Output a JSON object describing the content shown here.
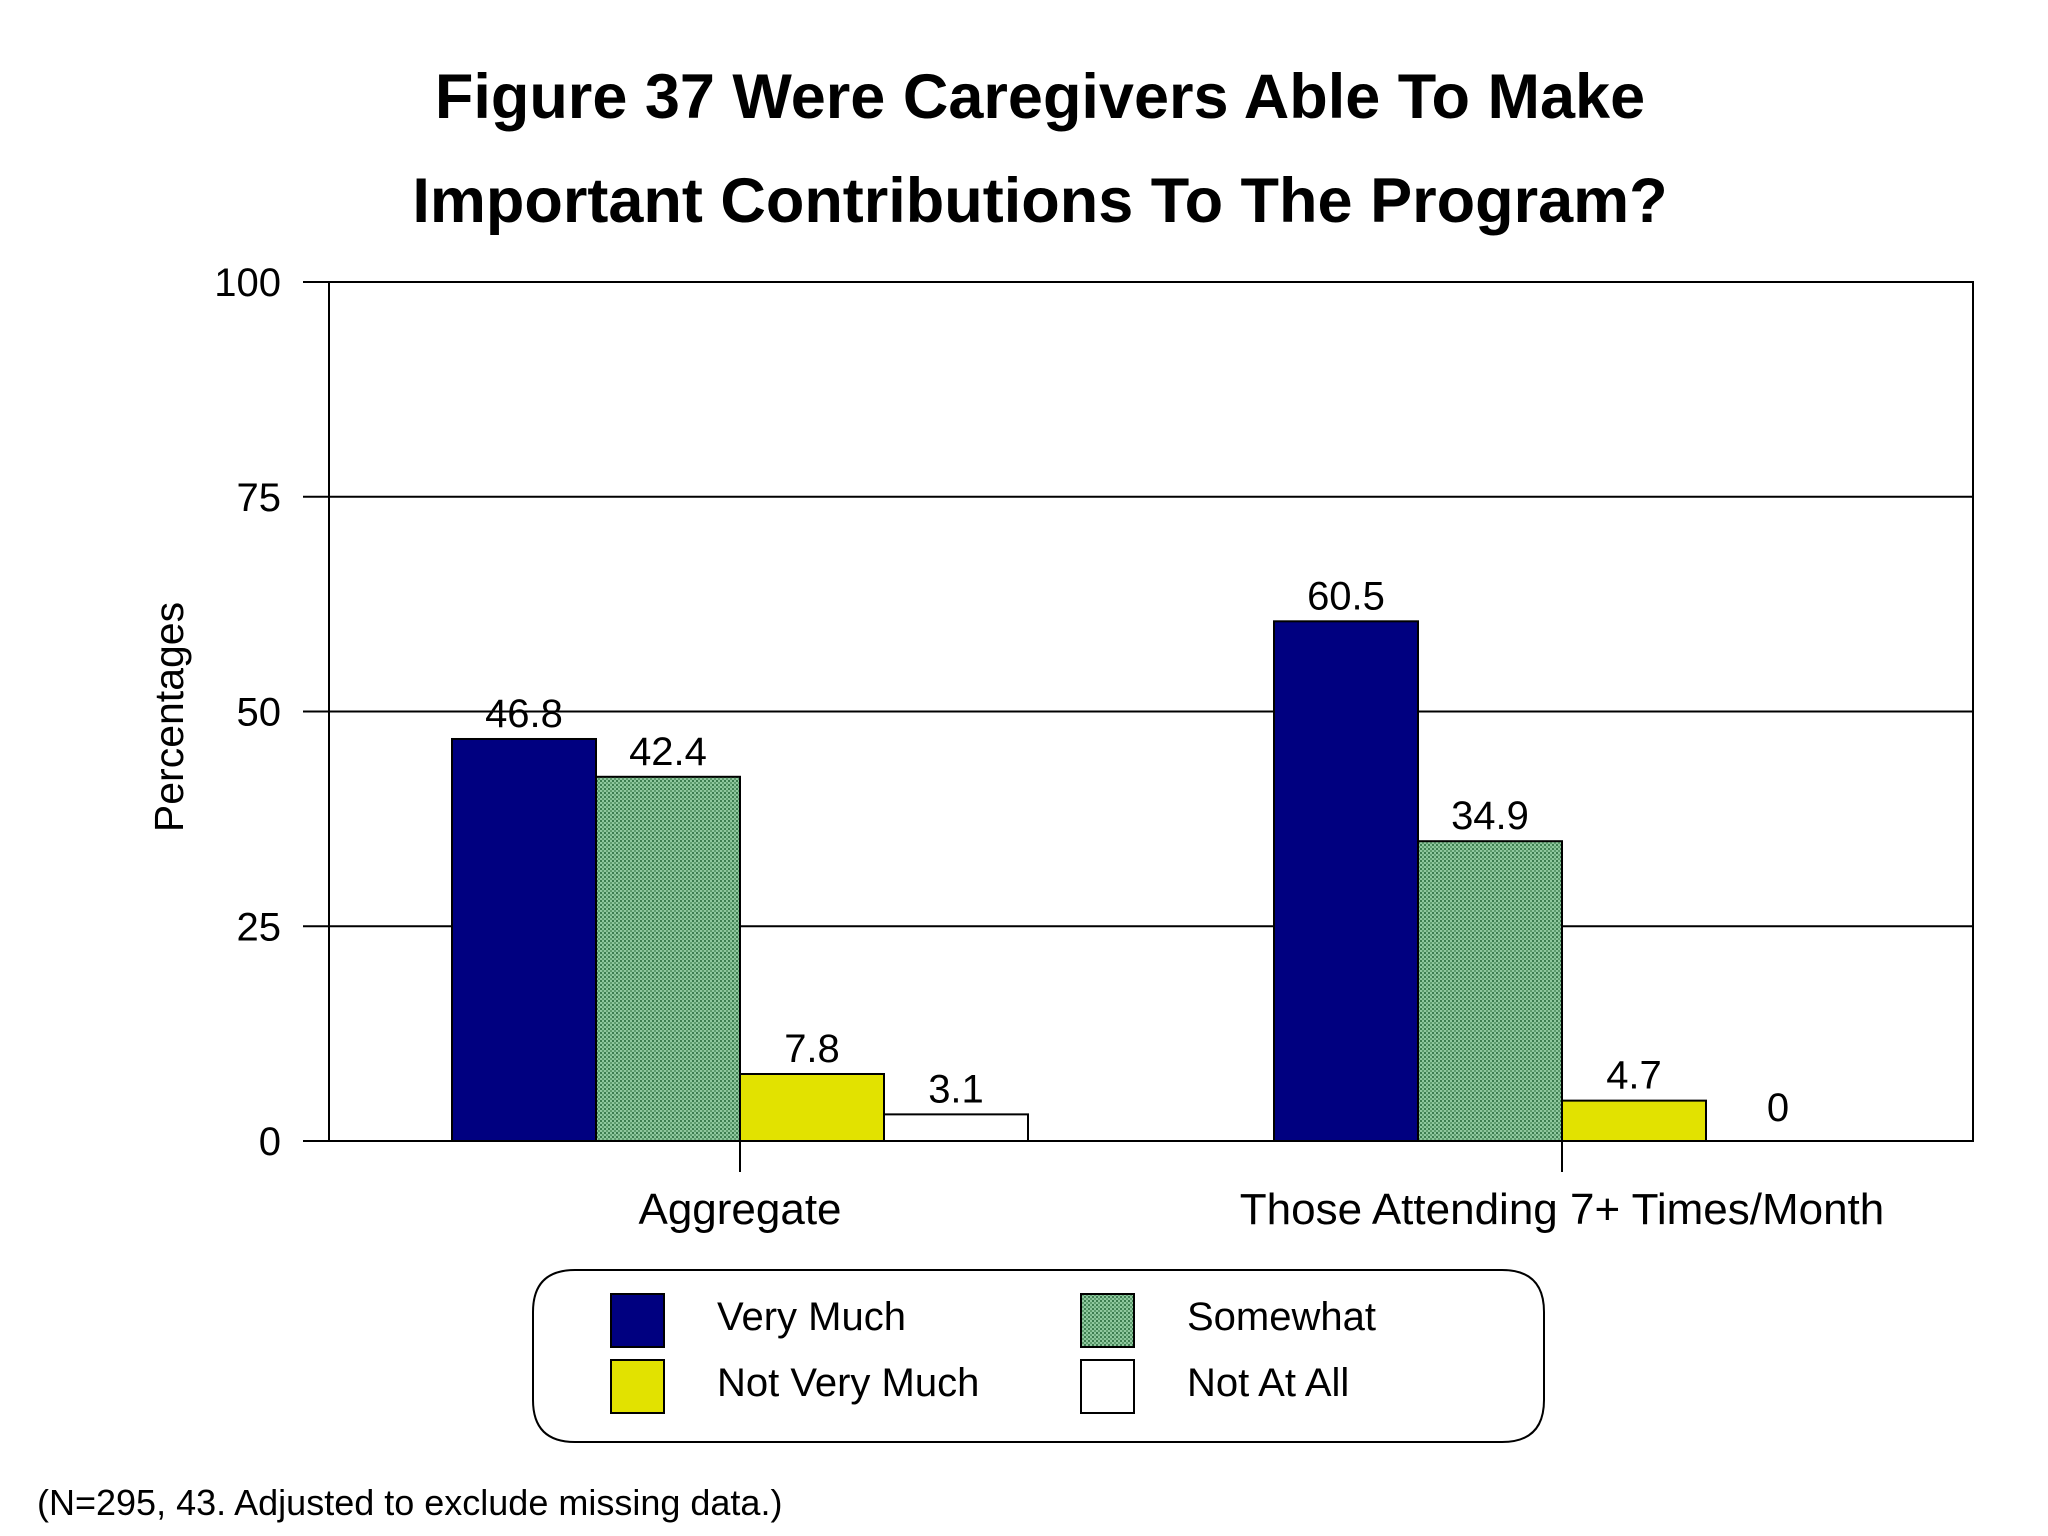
{
  "chart_data": {
    "type": "bar",
    "title_lines": [
      "Figure 37  Were Caregivers Able To Make",
      "Important Contributions To The Program?"
    ],
    "ylabel": "Percentages",
    "xlabel": "",
    "ylim": [
      0,
      100
    ],
    "yticks": [
      0,
      25,
      50,
      75,
      100
    ],
    "grid": true,
    "categories": [
      "Aggregate",
      "Those Attending 7+ Times/Month"
    ],
    "series": [
      {
        "name": "Very Much",
        "values": [
          46.8,
          60.5
        ],
        "color": "#000080",
        "pattern": "solid"
      },
      {
        "name": "Somewhat",
        "values": [
          42.4,
          34.9
        ],
        "color": "#6fae7f",
        "pattern": "dotted"
      },
      {
        "name": "Not Very Much",
        "values": [
          7.8,
          4.7
        ],
        "color": "#e2e200",
        "pattern": "solid"
      },
      {
        "name": "Not At All",
        "values": [
          3.1,
          0
        ],
        "color": "#ffffff",
        "pattern": "solid"
      }
    ],
    "value_labels": [
      [
        "46.8",
        "60.5"
      ],
      [
        "42.4",
        "34.9"
      ],
      [
        "7.8",
        "4.7"
      ],
      [
        "3.1",
        "0"
      ]
    ],
    "legend": {
      "placement": "bottom-center",
      "columns": 2
    },
    "note": "(N=295, 43. Adjusted to exclude missing data.)"
  }
}
